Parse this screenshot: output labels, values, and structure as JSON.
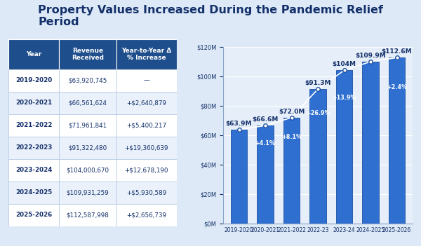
{
  "title": "Property Values Increased During the Pandemic Relief Period",
  "table": {
    "columns": [
      "Year",
      "Revenue\nReceived",
      "Year-to-Year Δ\n% Increase"
    ],
    "rows": [
      [
        "2019-2020",
        "$63,920,745",
        "—"
      ],
      [
        "2020-2021",
        "$66,561,624",
        "+$2,640,879"
      ],
      [
        "2021-2022",
        "$71,961,841",
        "+$5,400,217"
      ],
      [
        "2022-2023",
        "$91,322,480",
        "+$19,360,639"
      ],
      [
        "2023-2024",
        "$104,000,670",
        "+$12,678,190"
      ],
      [
        "2024-2025",
        "$109,931,259",
        "+$5,930,589"
      ],
      [
        "2025-2026",
        "$112,587,998",
        "+$2,656,739"
      ]
    ]
  },
  "chart_data": {
    "type": "bar",
    "categories": [
      "2019-2020",
      "2020-2021",
      "2021-2022",
      "2022-23",
      "2023-24",
      "2024-2025",
      "2025-2026"
    ],
    "values": [
      63.9,
      66.6,
      72.0,
      91.3,
      104,
      109.9,
      112.6
    ],
    "value_labels": [
      "$63.9M",
      "$66.6M",
      "$72.0M",
      "$91.3M",
      "$104M",
      "$109.9M",
      "$112.6M"
    ],
    "annotations": [
      null,
      "+4.1%",
      "+8.1%",
      "+26.9%",
      "+13.9%",
      null,
      "+2.4%"
    ],
    "color": "#2f6fd0",
    "marker": "o",
    "ylim": [
      0,
      120
    ],
    "yticks": [
      {
        "value": 0,
        "label": "$0M"
      },
      {
        "value": 20,
        "label": "$20M"
      },
      {
        "value": 40,
        "label": "$40M"
      },
      {
        "value": 60,
        "label": "$60M"
      },
      {
        "value": 80,
        "label": "$80M"
      },
      {
        "value": 100,
        "label": "$100M"
      },
      {
        "value": 120,
        "label": "$120M"
      }
    ],
    "grid": true,
    "data_labels": true
  }
}
